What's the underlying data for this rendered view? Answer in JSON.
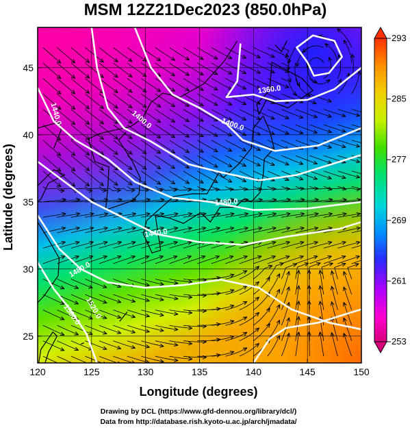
{
  "title": "MSM 12Z21Dec2023 (850.0hPa)",
  "x_axis": {
    "label": "Longitude (degrees)",
    "range": [
      120,
      150
    ],
    "ticks": [
      "120",
      "125",
      "130",
      "135",
      "140",
      "145",
      "150"
    ]
  },
  "y_axis": {
    "label": "Latitude  (degrees)",
    "range": [
      23,
      48
    ],
    "ticks": [
      "25",
      "30",
      "35",
      "40",
      "45"
    ]
  },
  "colorbar": {
    "range": [
      253,
      293
    ],
    "labels": [
      "293",
      "285",
      "277",
      "269",
      "261",
      "253"
    ],
    "colors": [
      "#d8007a",
      "#ff00d0",
      "#b000ff",
      "#2a2aff",
      "#0090ff",
      "#00d8d8",
      "#00e070",
      "#40e000",
      "#c8f000",
      "#f0d000",
      "#ff9000",
      "#ff3000"
    ]
  },
  "contours": [
    {
      "label": "1360.0"
    },
    {
      "label": "1400.0"
    },
    {
      "label": "1400.0"
    },
    {
      "label": "1440.0"
    },
    {
      "label": "1480.0"
    },
    {
      "label": "1440.0"
    },
    {
      "label": "1480.0"
    },
    {
      "label": "1520.0"
    },
    {
      "label": "1560.0"
    }
  ],
  "credits": {
    "line1": "Drawing by DCL (https://www.gfd-dennou.org/library/dcl/)",
    "line2": "Data from http://database.rish.kyoto-u.ac.jp/arch/jmadata/"
  }
}
